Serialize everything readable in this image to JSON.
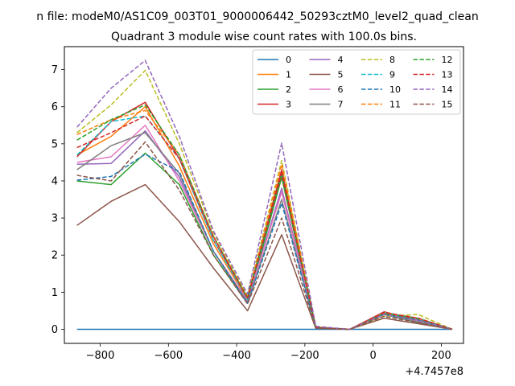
{
  "figure": {
    "suptitle": "n file: modeM0/AS1C09_003T01_9000006442_50293cztM0_level2_quad_clean"
  },
  "chart_data": {
    "type": "line",
    "title": "Quadrant 3 module wise count rates with 100.0s bins.",
    "xlabel": "",
    "ylabel": "",
    "x_offset_label": "+4.7457e8",
    "xlim": [
      -905,
      265
    ],
    "ylim": [
      -0.38,
      7.62
    ],
    "xticks": [
      -800,
      -600,
      -400,
      -200,
      0,
      200
    ],
    "xtick_labels": [
      "−800",
      "−600",
      "−400",
      "−200",
      "0",
      "200"
    ],
    "yticks": [
      0,
      1,
      2,
      3,
      4,
      5,
      6,
      7
    ],
    "ytick_labels": [
      "0",
      "1",
      "2",
      "3",
      "4",
      "5",
      "6",
      "7"
    ],
    "grid": false,
    "legend_position": "upper right",
    "legend_columns": 4,
    "x": [
      -868,
      -768,
      -668,
      -568,
      -468,
      -368,
      -268,
      -168,
      -68,
      32,
      132,
      232
    ],
    "series": [
      {
        "name": "0",
        "color": "#1f77b4",
        "style": "solid",
        "values": [
          0.0,
          0.0,
          0.0,
          0.0,
          0.0,
          0.0,
          0.0,
          0.0,
          0.0,
          0.0,
          0.0,
          0.0
        ]
      },
      {
        "name": "1",
        "color": "#ff7f0e",
        "style": "solid",
        "values": [
          4.7,
          5.2,
          6.0,
          4.4,
          2.3,
          0.8,
          4.1,
          0.04,
          0.0,
          0.45,
          0.2,
          0.0
        ]
      },
      {
        "name": "2",
        "color": "#2ca02c",
        "style": "solid",
        "values": [
          4.0,
          3.9,
          4.75,
          3.9,
          2.0,
          0.7,
          4.1,
          0.03,
          0.0,
          0.4,
          0.18,
          0.0
        ]
      },
      {
        "name": "3",
        "color": "#d62728",
        "style": "solid",
        "values": [
          4.65,
          5.6,
          6.12,
          4.6,
          2.4,
          0.85,
          4.3,
          0.05,
          0.0,
          0.47,
          0.25,
          0.0
        ]
      },
      {
        "name": "4",
        "color": "#9467bd",
        "style": "solid",
        "values": [
          4.45,
          4.47,
          5.35,
          4.1,
          2.1,
          0.75,
          3.8,
          0.05,
          0.0,
          0.45,
          0.22,
          0.0
        ]
      },
      {
        "name": "5",
        "color": "#8c564b",
        "style": "solid",
        "values": [
          2.8,
          3.45,
          3.9,
          2.9,
          1.65,
          0.5,
          2.55,
          0.02,
          0.0,
          0.3,
          0.15,
          0.0
        ]
      },
      {
        "name": "6",
        "color": "#e377c2",
        "style": "solid",
        "values": [
          4.5,
          4.65,
          5.5,
          4.0,
          2.1,
          0.78,
          3.7,
          0.05,
          0.0,
          0.42,
          0.22,
          0.0
        ]
      },
      {
        "name": "7",
        "color": "#7f7f7f",
        "style": "solid",
        "values": [
          4.3,
          4.95,
          5.3,
          4.2,
          2.1,
          0.72,
          3.5,
          0.04,
          0.0,
          0.4,
          0.2,
          0.0
        ]
      },
      {
        "name": "8",
        "color": "#bcbd22",
        "style": "dashed",
        "values": [
          5.3,
          6.05,
          6.98,
          5.0,
          2.6,
          0.9,
          4.55,
          0.06,
          0.0,
          0.35,
          0.4,
          0.0
        ]
      },
      {
        "name": "9",
        "color": "#17becf",
        "style": "dashed",
        "values": [
          4.7,
          5.6,
          5.75,
          4.6,
          2.4,
          0.8,
          4.2,
          0.05,
          0.0,
          0.45,
          0.3,
          0.0
        ]
      },
      {
        "name": "10",
        "color": "#1f77b4",
        "style": "dashed",
        "values": [
          4.02,
          4.12,
          4.72,
          4.25,
          2.1,
          0.7,
          3.4,
          0.03,
          0.0,
          0.4,
          0.25,
          0.0
        ]
      },
      {
        "name": "11",
        "color": "#ff7f0e",
        "style": "dashed",
        "values": [
          5.25,
          5.65,
          5.9,
          4.7,
          2.5,
          0.85,
          4.45,
          0.05,
          0.0,
          0.45,
          0.3,
          0.0
        ]
      },
      {
        "name": "12",
        "color": "#2ca02c",
        "style": "dashed",
        "values": [
          5.1,
          5.65,
          6.05,
          4.7,
          2.5,
          0.85,
          4.2,
          0.05,
          0.0,
          0.42,
          0.28,
          0.0
        ]
      },
      {
        "name": "13",
        "color": "#d62728",
        "style": "dashed",
        "values": [
          4.9,
          5.3,
          5.75,
          4.6,
          2.5,
          0.82,
          4.2,
          0.05,
          0.0,
          0.45,
          0.3,
          0.0
        ]
      },
      {
        "name": "14",
        "color": "#9467bd",
        "style": "dashed",
        "values": [
          5.45,
          6.5,
          7.25,
          5.2,
          2.65,
          0.95,
          5.02,
          0.08,
          0.0,
          0.4,
          0.25,
          0.0
        ]
      },
      {
        "name": "15",
        "color": "#8c564b",
        "style": "dashed",
        "values": [
          4.15,
          4.0,
          5.05,
          3.75,
          2.0,
          0.68,
          3.0,
          0.03,
          0.0,
          0.35,
          0.18,
          0.0
        ]
      }
    ]
  }
}
